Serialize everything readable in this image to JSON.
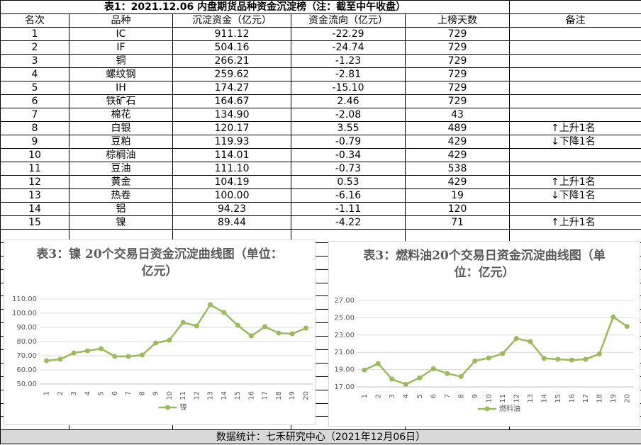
{
  "table": {
    "title": "表1：2021.12.06 内盘期货品种资金沉淀榜（注：截至中午收盘）",
    "header": [
      "名次",
      "品种",
      "沉淀资金（亿元）",
      "资金流向（亿元）",
      "上榜天数",
      "备注"
    ],
    "rows": [
      [
        "1",
        "IC",
        "911.12",
        "-22.29",
        "729",
        ""
      ],
      [
        "2",
        "IF",
        "504.16",
        "-24.74",
        "729",
        ""
      ],
      [
        "3",
        "铜",
        "266.21",
        "-1.23",
        "729",
        ""
      ],
      [
        "4",
        "螺纹钢",
        "259.62",
        "-2.81",
        "729",
        ""
      ],
      [
        "5",
        "IH",
        "174.27",
        "-15.10",
        "729",
        ""
      ],
      [
        "6",
        "铁矿石",
        "164.67",
        "2.46",
        "729",
        ""
      ],
      [
        "7",
        "棉花",
        "134.90",
        "-2.08",
        "43",
        ""
      ],
      [
        "8",
        "白银",
        "120.17",
        "3.55",
        "489",
        "↑上升1名"
      ],
      [
        "9",
        "豆粕",
        "119.93",
        "-0.79",
        "429",
        "↓下降1名"
      ],
      [
        "10",
        "棕榈油",
        "114.01",
        "-0.34",
        "429",
        ""
      ],
      [
        "11",
        "豆油",
        "111.10",
        "-0.73",
        "538",
        ""
      ],
      [
        "12",
        "黄金",
        "104.19",
        "0.53",
        "429",
        "↑上升1名"
      ],
      [
        "13",
        "热卷",
        "100.00",
        "-6.16",
        "19",
        "↓下降1名"
      ],
      [
        "14",
        "铝",
        "94.23",
        "-1.11",
        "120",
        ""
      ],
      [
        "15",
        "镍",
        "89.44",
        "-4.22",
        "71",
        "↑上升1名"
      ]
    ],
    "footer": "数据统计：七禾研究中心（2021年12月06日）"
  },
  "chart_data": [
    {
      "type": "line",
      "title": "表3：镍 20个交易日资金沉淀曲线图（单位：亿元）",
      "categories": [
        "1",
        "2",
        "3",
        "4",
        "5",
        "6",
        "7",
        "8",
        "9",
        "10",
        "11",
        "12",
        "13",
        "14",
        "15",
        "16",
        "17",
        "18",
        "19",
        "20"
      ],
      "series": [
        {
          "name": "镍",
          "color": "#9bbb59",
          "values": [
            66.5,
            67.5,
            72,
            73.5,
            75,
            69.5,
            69.5,
            70.5,
            79,
            81,
            93.5,
            91,
            106,
            100.5,
            91.5,
            84,
            90.5,
            86,
            85.5,
            89.5
          ]
        }
      ],
      "ylim": [
        50,
        110
      ],
      "yticks": [
        {
          "value": 50,
          "label": "50.00"
        },
        {
          "value": 60,
          "label": "60.00"
        },
        {
          "value": 70,
          "label": "70.00"
        },
        {
          "value": 80,
          "label": "80.00"
        },
        {
          "value": 90,
          "label": "90.00"
        },
        {
          "value": 100,
          "label": "100.00"
        },
        {
          "value": 110,
          "label": "110.00"
        }
      ],
      "grid": true,
      "legend": "bottom"
    },
    {
      "type": "line",
      "title": "表3：燃料油20个交易日资金沉淀曲线图（单位：亿元）",
      "categories": [
        "1",
        "2",
        "3",
        "4",
        "5",
        "6",
        "7",
        "8",
        "9",
        "10",
        "11",
        "12",
        "13",
        "14",
        "15",
        "16",
        "17",
        "18",
        "19",
        "20"
      ],
      "series": [
        {
          "name": "燃料油",
          "color": "#9bbb59",
          "values": [
            18.95,
            19.7,
            17.9,
            17.3,
            18.05,
            19.1,
            18.55,
            18.2,
            20.0,
            20.35,
            20.85,
            22.6,
            22.25,
            20.3,
            20.2,
            20.1,
            20.2,
            20.8,
            25.1,
            24.0
          ]
        }
      ],
      "ylim": [
        17,
        27
      ],
      "yticks": [
        {
          "value": 17,
          "label": "17.00"
        },
        {
          "value": 19,
          "label": "19.00"
        },
        {
          "value": 21,
          "label": "21.00"
        },
        {
          "value": 23,
          "label": "23.00"
        },
        {
          "value": 25,
          "label": "25.00"
        },
        {
          "value": 27,
          "label": "27.00"
        }
      ],
      "grid": true,
      "legend": "bottom"
    }
  ]
}
